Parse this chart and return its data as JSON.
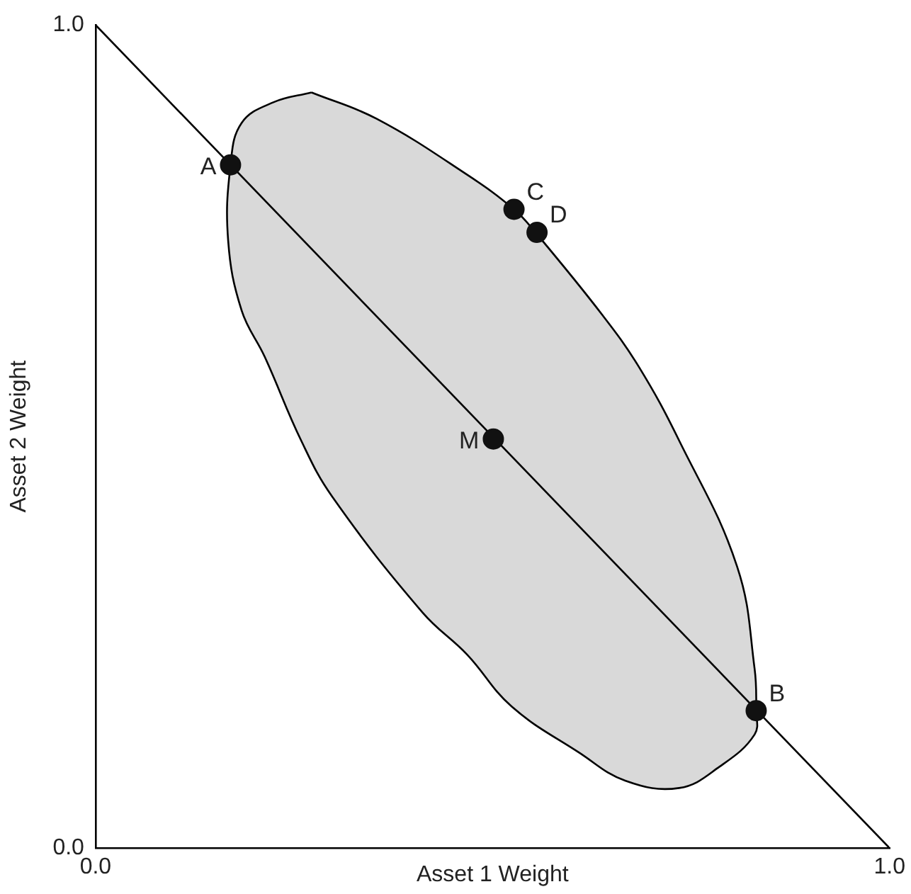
{
  "chart_data": {
    "type": "scatter",
    "xlabel": "Asset 1 Weight",
    "ylabel": "Asset 2 Weight",
    "xlim": [
      0,
      1
    ],
    "ylim": [
      0,
      1
    ],
    "xticks": [
      {
        "value": 0,
        "label": "0.0"
      },
      {
        "value": 1,
        "label": "1.0"
      }
    ],
    "yticks": [
      {
        "value": 0,
        "label": "0.0"
      },
      {
        "value": 1,
        "label": "1.0"
      }
    ],
    "grid": false,
    "legend": false,
    "marker": "circle",
    "series": [
      {
        "type": "area",
        "color": "#d9d9d9",
        "x": [
          0.272,
          0.354,
          0.468,
          0.527,
          0.554,
          0.638,
          0.684,
          0.735,
          0.808,
          0.83,
          0.832,
          0.83,
          0.786,
          0.735,
          0.667,
          0.609,
          0.524,
          0.468,
          0.412,
          0.298,
          0.259,
          0.213,
          0.184,
          0.167,
          0.17,
          0.184,
          0.224
        ],
        "values": [
          0.918,
          0.886,
          0.818,
          0.776,
          0.748,
          0.648,
          0.585,
          0.495,
          0.342,
          0.218,
          0.167,
          0.138,
          0.099,
          0.073,
          0.082,
          0.116,
          0.172,
          0.235,
          0.286,
          0.427,
          0.495,
          0.597,
          0.653,
          0.738,
          0.83,
          0.881,
          0.906
        ],
        "marker": "none"
      },
      {
        "type": "line",
        "color": "#000000",
        "x": [
          0,
          1
        ],
        "values": [
          1,
          0
        ],
        "marker": "none"
      },
      {
        "color": "#111111",
        "x": [
          0.17,
          0.527,
          0.556,
          0.501,
          0.832
        ],
        "values": [
          0.83,
          0.776,
          0.748,
          0.497,
          0.167
        ]
      }
    ],
    "annotations": [
      {
        "text": "A",
        "x": 0.17,
        "y": 0.83
      },
      {
        "text": "C",
        "x": 0.527,
        "y": 0.776
      },
      {
        "text": "D",
        "x": 0.556,
        "y": 0.748
      },
      {
        "text": "M",
        "x": 0.501,
        "y": 0.497
      },
      {
        "text": "B",
        "x": 0.832,
        "y": 0.167
      }
    ]
  }
}
